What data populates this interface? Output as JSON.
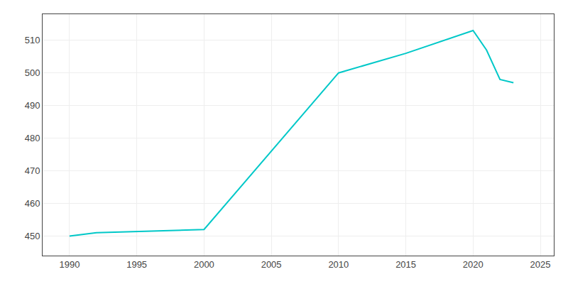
{
  "chart_data": {
    "type": "line",
    "x": [
      1990,
      1992,
      2000,
      2010,
      2015,
      2020,
      2021,
      2022,
      2023
    ],
    "values": [
      450,
      451,
      452,
      500,
      506,
      513,
      507,
      498,
      497
    ],
    "color": "#00c8c8",
    "xlim": [
      1988,
      2026
    ],
    "ylim": [
      444,
      518
    ],
    "xticks": [
      1990,
      1995,
      2000,
      2005,
      2010,
      2015,
      2020,
      2025
    ],
    "yticks": [
      450,
      460,
      470,
      480,
      490,
      500,
      510
    ],
    "grid": true
  }
}
